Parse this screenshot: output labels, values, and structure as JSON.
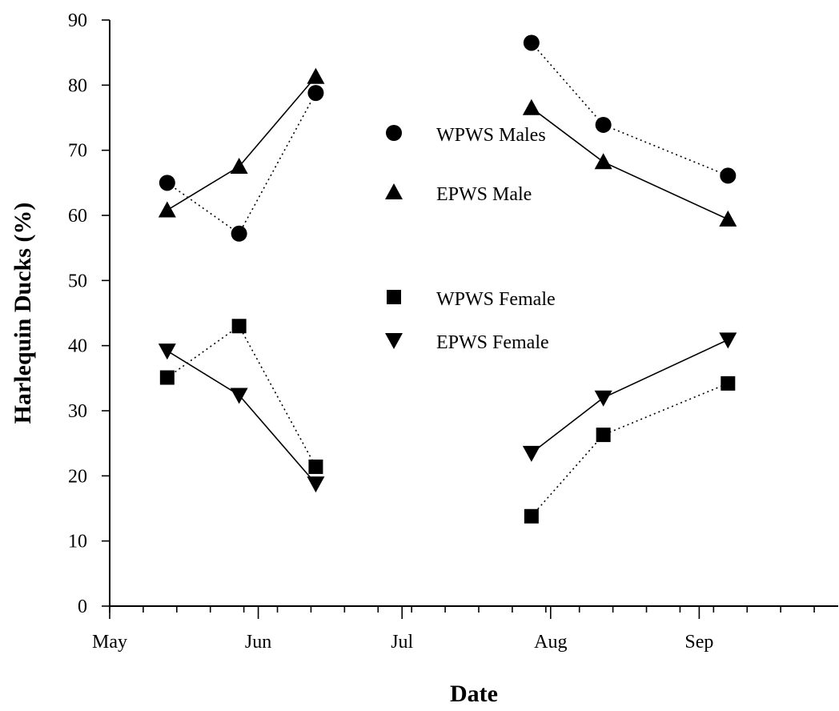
{
  "chart_data": {
    "type": "line",
    "xlabel": "Date",
    "ylabel": "Harlequin Ducks (%)",
    "ylim": [
      0,
      90
    ],
    "yticks": [
      0,
      10,
      20,
      30,
      40,
      50,
      60,
      70,
      80,
      90
    ],
    "xlim": [
      "May 1",
      "Sep 30"
    ],
    "x_tick_labels": [
      {
        "label": "May",
        "date": "May 1"
      },
      {
        "label": "Jun",
        "date": "Jun 1"
      },
      {
        "label": "Jul",
        "date": "Jul 1"
      },
      {
        "label": "Aug",
        "date": "Aug 1"
      },
      {
        "label": "Sep",
        "date": "Sep 1"
      }
    ],
    "legend_position": "center",
    "grid": false,
    "series": [
      {
        "name": "WPWS Males",
        "marker": "circle",
        "line": "dotted",
        "segments": [
          [
            {
              "x": "May 13",
              "y": 65.0
            },
            {
              "x": "May 28",
              "y": 57.2
            },
            {
              "x": "Jun 13",
              "y": 78.8
            }
          ],
          [
            {
              "x": "Jul 28",
              "y": 86.5
            },
            {
              "x": "Aug 12",
              "y": 73.9
            },
            {
              "x": "Sep 7",
              "y": 66.1
            }
          ]
        ]
      },
      {
        "name": "EPWS Male",
        "marker": "triangle-up",
        "line": "solid",
        "segments": [
          [
            {
              "x": "May 13",
              "y": 60.8
            },
            {
              "x": "May 28",
              "y": 67.5
            },
            {
              "x": "Jun 13",
              "y": 81.3
            }
          ],
          [
            {
              "x": "Jul 28",
              "y": 76.5
            },
            {
              "x": "Aug 12",
              "y": 68.2
            },
            {
              "x": "Sep 7",
              "y": 59.4
            }
          ]
        ]
      },
      {
        "name": "WPWS Female",
        "marker": "square",
        "line": "dotted",
        "segments": [
          [
            {
              "x": "May 13",
              "y": 35.1
            },
            {
              "x": "May 28",
              "y": 43.0
            },
            {
              "x": "Jun 13",
              "y": 21.4
            }
          ],
          [
            {
              "x": "Jul 28",
              "y": 13.8
            },
            {
              "x": "Aug 12",
              "y": 26.3
            },
            {
              "x": "Sep 7",
              "y": 34.2
            }
          ]
        ]
      },
      {
        "name": "EPWS Female",
        "marker": "triangle-down",
        "line": "solid",
        "segments": [
          [
            {
              "x": "May 13",
              "y": 39.2
            },
            {
              "x": "May 28",
              "y": 32.4
            },
            {
              "x": "Jun 13",
              "y": 18.8
            }
          ],
          [
            {
              "x": "Jul 28",
              "y": 23.5
            },
            {
              "x": "Aug 12",
              "y": 32.0
            },
            {
              "x": "Sep 7",
              "y": 40.9
            }
          ]
        ]
      }
    ],
    "colors": {
      "marker": "#000000",
      "line": "#000000",
      "background": "#ffffff"
    }
  }
}
